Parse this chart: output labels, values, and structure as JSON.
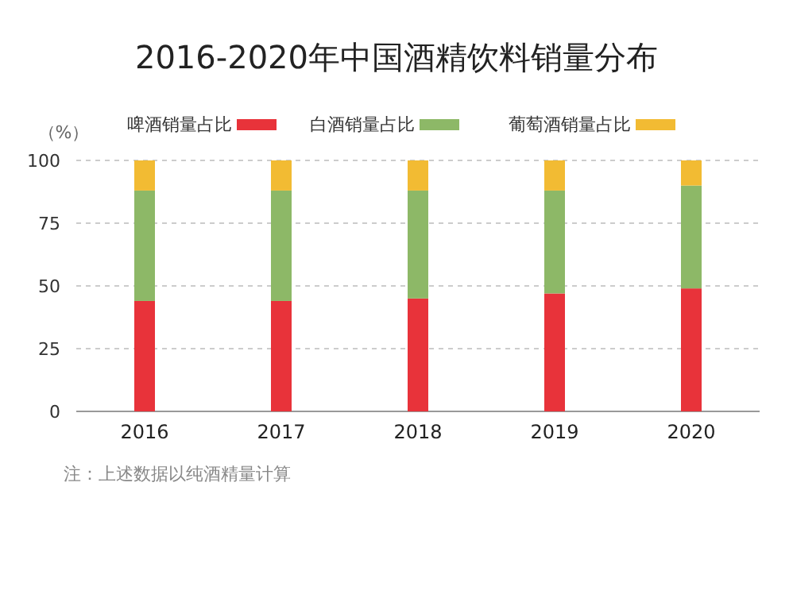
{
  "chart_data": {
    "type": "bar",
    "title": "2016-2020年中国酒精饮料销量分布",
    "ylabel": "（%）",
    "stacked": true,
    "categories": [
      "2016",
      "2017",
      "2018",
      "2019",
      "2020"
    ],
    "series": [
      {
        "name": "啤酒销量占比",
        "color": "#e8333a",
        "values": [
          44,
          44,
          45,
          47,
          49
        ]
      },
      {
        "name": "白酒销量占比",
        "color": "#8db867",
        "values": [
          44,
          44,
          43,
          41,
          41
        ]
      },
      {
        "name": "葡萄酒销量占比",
        "color": "#f2bb33",
        "values": [
          12,
          12,
          12,
          12,
          10
        ]
      }
    ],
    "ylim": [
      0,
      100
    ],
    "yticks": [
      0,
      25,
      50,
      75,
      100
    ],
    "grid": "y",
    "legend": "top",
    "annotations": [
      "注：上述数据以纯酒精量计算"
    ]
  }
}
